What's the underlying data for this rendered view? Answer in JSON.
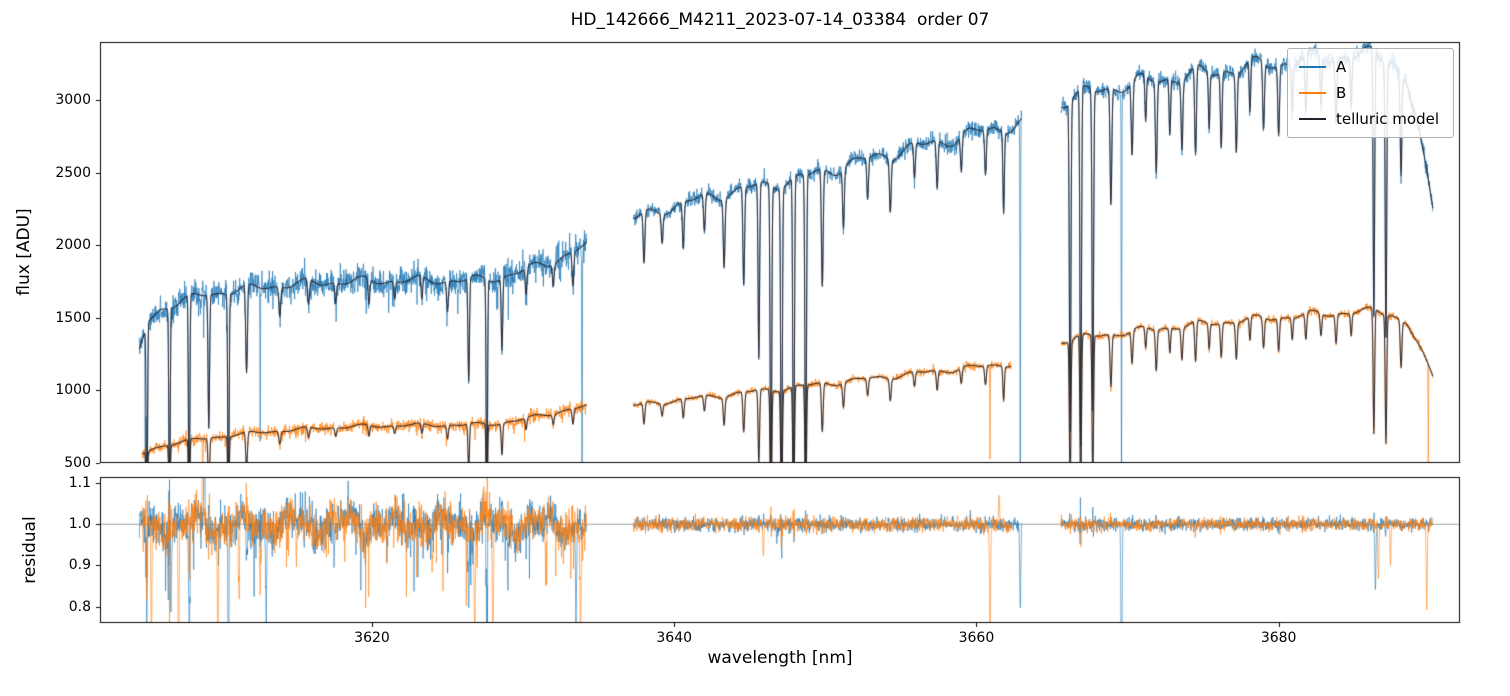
{
  "title": "HD_142666_M4211_2023-07-14_03384  order 07",
  "axes": {
    "top": {
      "ylabel": "flux [ADU]",
      "xlim": [
        3602,
        3692
      ],
      "ylim": [
        500,
        3400
      ],
      "yticks": [
        500,
        1000,
        1500,
        2000,
        2500,
        3000
      ]
    },
    "bottom": {
      "ylabel": "residual",
      "xlabel": "wavelength [nm]",
      "xlim": [
        3602,
        3692
      ],
      "ylim": [
        0.76,
        1.115
      ],
      "yticks": [
        0.8,
        0.9,
        1.0,
        1.1
      ],
      "ytick_labels": [
        "0.8",
        "0.9",
        "1.0",
        "1.1"
      ],
      "xticks": [
        3620,
        3640,
        3660,
        3680
      ],
      "hline": 1.0
    }
  },
  "legend": {
    "entries": [
      {
        "label": "A",
        "color": "#1f77b4",
        "lw": 2.5
      },
      {
        "label": "B",
        "color": "#ff7f0e",
        "lw": 2.5
      },
      {
        "label": "telluric model",
        "color": "#22222c",
        "lw": 1.4
      }
    ]
  },
  "chart_data": {
    "type": "line",
    "description": "Spectrograph order 07: flux of fibres A and B with overlaid telluric model (top panel), residuals observed/model around 1.0 (bottom panel). Three detector segments separated by gaps near 3634-3637 nm and 3663-3665.5 nm.",
    "seed": 42,
    "sample_step_nm": 0.02,
    "model_color": "#22222c",
    "flux_noise": [
      0.028,
      0.011,
      0.009
    ],
    "residual_noise": [
      0.024,
      0.0085,
      0.0075
    ],
    "telluric_lines": [
      [
        3605.1,
        0.98,
        0.06
      ],
      [
        3606.6,
        0.95,
        0.06
      ],
      [
        3607.9,
        0.99,
        0.06
      ],
      [
        3609.2,
        0.55,
        0.07
      ],
      [
        3610.5,
        0.98,
        0.06
      ],
      [
        3611.7,
        0.35,
        0.08
      ],
      [
        3613.9,
        0.12,
        0.09
      ],
      [
        3615.8,
        0.1,
        0.09
      ],
      [
        3617.6,
        0.08,
        0.08
      ],
      [
        3619.8,
        0.1,
        0.08
      ],
      [
        3621.5,
        0.07,
        0.08
      ],
      [
        3623.3,
        0.09,
        0.08
      ],
      [
        3625.0,
        0.12,
        0.08
      ],
      [
        3626.4,
        0.4,
        0.07
      ],
      [
        3627.6,
        0.97,
        0.06
      ],
      [
        3628.6,
        0.28,
        0.07
      ],
      [
        3630.2,
        0.1,
        0.08
      ],
      [
        3632.0,
        0.08,
        0.08
      ],
      [
        3633.3,
        0.12,
        0.08
      ],
      [
        3638.0,
        0.16,
        0.08
      ],
      [
        3639.2,
        0.09,
        0.08
      ],
      [
        3640.6,
        0.14,
        0.08
      ],
      [
        3642.0,
        0.11,
        0.08
      ],
      [
        3643.3,
        0.2,
        0.08
      ],
      [
        3644.6,
        0.28,
        0.08
      ],
      [
        3645.6,
        0.5,
        0.07
      ],
      [
        3646.4,
        0.96,
        0.07
      ],
      [
        3647.1,
        0.99,
        0.07
      ],
      [
        3647.9,
        0.98,
        0.07
      ],
      [
        3648.7,
        0.88,
        0.07
      ],
      [
        3649.8,
        0.32,
        0.08
      ],
      [
        3651.2,
        0.16,
        0.08
      ],
      [
        3652.8,
        0.11,
        0.08
      ],
      [
        3654.3,
        0.14,
        0.08
      ],
      [
        3655.9,
        0.09,
        0.08
      ],
      [
        3657.4,
        0.12,
        0.08
      ],
      [
        3659.0,
        0.09,
        0.08
      ],
      [
        3660.6,
        0.11,
        0.08
      ],
      [
        3661.8,
        0.2,
        0.07
      ],
      [
        3666.2,
        0.76,
        0.07
      ],
      [
        3666.9,
        0.8,
        0.07
      ],
      [
        3667.7,
        0.72,
        0.07
      ],
      [
        3668.9,
        0.26,
        0.08
      ],
      [
        3670.3,
        0.16,
        0.08
      ],
      [
        3671.2,
        0.1,
        0.07
      ],
      [
        3671.9,
        0.2,
        0.08
      ],
      [
        3672.8,
        0.12,
        0.07
      ],
      [
        3673.6,
        0.15,
        0.08
      ],
      [
        3674.5,
        0.19,
        0.08
      ],
      [
        3675.4,
        0.12,
        0.07
      ],
      [
        3676.2,
        0.16,
        0.08
      ],
      [
        3677.2,
        0.17,
        0.08
      ],
      [
        3678.1,
        0.11,
        0.07
      ],
      [
        3679.0,
        0.14,
        0.08
      ],
      [
        3680.0,
        0.15,
        0.08
      ],
      [
        3680.9,
        0.1,
        0.07
      ],
      [
        3681.8,
        0.12,
        0.08
      ],
      [
        3682.8,
        0.1,
        0.08
      ],
      [
        3683.8,
        0.13,
        0.08
      ],
      [
        3684.8,
        0.1,
        0.07
      ],
      [
        3686.3,
        0.55,
        0.07
      ],
      [
        3687.1,
        0.58,
        0.07
      ],
      [
        3688.1,
        0.22,
        0.08
      ]
    ],
    "series": [
      {
        "name": "A",
        "color": "#1f77b4",
        "segments": [
          {
            "range": [
              3604.6,
              3634.2
            ],
            "env": [
              [
                3604.6,
                1270
              ],
              [
                3605.2,
                1480
              ],
              [
                3606.0,
                1560
              ],
              [
                3607.5,
                1620
              ],
              [
                3609.0,
                1660
              ],
              [
                3611.0,
                1690
              ],
              [
                3613.0,
                1715
              ],
              [
                3616.0,
                1740
              ],
              [
                3619.0,
                1752
              ],
              [
                3622.0,
                1758
              ],
              [
                3625.0,
                1758
              ],
              [
                3627.0,
                1762
              ],
              [
                3628.5,
                1780
              ],
              [
                3630.0,
                1822
              ],
              [
                3631.5,
                1875
              ],
              [
                3633.0,
                1940
              ],
              [
                3634.2,
                1995
              ]
            ]
          },
          {
            "range": [
              3637.3,
              3663.0
            ],
            "env": [
              [
                3637.3,
                2180
              ],
              [
                3639.0,
                2240
              ],
              [
                3641.0,
                2300
              ],
              [
                3643.0,
                2350
              ],
              [
                3645.0,
                2395
              ],
              [
                3647.0,
                2430
              ],
              [
                3649.0,
                2480
              ],
              [
                3651.0,
                2540
              ],
              [
                3653.0,
                2600
              ],
              [
                3655.0,
                2650
              ],
              [
                3657.0,
                2700
              ],
              [
                3659.0,
                2750
              ],
              [
                3661.0,
                2800
              ],
              [
                3662.5,
                2830
              ],
              [
                3663.0,
                2840
              ]
            ]
          },
          {
            "range": [
              3665.6,
              3690.2
            ],
            "env": [
              [
                3665.6,
                2990
              ],
              [
                3667.0,
                3040
              ],
              [
                3669.0,
                3090
              ],
              [
                3671.0,
                3125
              ],
              [
                3673.0,
                3155
              ],
              [
                3675.0,
                3185
              ],
              [
                3677.0,
                3215
              ],
              [
                3679.0,
                3245
              ],
              [
                3681.0,
                3270
              ],
              [
                3683.0,
                3295
              ],
              [
                3685.0,
                3310
              ],
              [
                3686.5,
                3305
              ],
              [
                3687.5,
                3290
              ],
              [
                3688.5,
                3120
              ],
              [
                3689.3,
                2760
              ],
              [
                3690.2,
                2240
              ]
            ]
          }
        ],
        "dips": [
          [
            3605.0,
            0.99,
            0.025
          ],
          [
            3612.6,
            0.6,
            0.02
          ],
          [
            3633.9,
            0.95,
            0.025
          ],
          [
            3662.9,
            0.99,
            0.025
          ],
          [
            3669.6,
            0.99,
            0.025
          ]
        ],
        "residual_spikes": [
          [
            3605.1,
            -0.28
          ],
          [
            3606.7,
            -0.22
          ],
          [
            3607.9,
            -0.35
          ],
          [
            3608.9,
            0.18
          ],
          [
            3610.5,
            -0.3
          ],
          [
            3611.7,
            -0.15
          ],
          [
            3613.0,
            -0.22
          ],
          [
            3617.5,
            -0.1
          ],
          [
            3621.0,
            -0.08
          ],
          [
            3626.4,
            -0.18
          ],
          [
            3627.6,
            -0.32
          ],
          [
            3629.0,
            -0.12
          ],
          [
            3633.5,
            -0.25
          ],
          [
            3646.8,
            -0.05
          ],
          [
            3662.9,
            -0.2
          ],
          [
            3669.6,
            -0.45
          ],
          [
            3686.4,
            -0.16
          ]
        ]
      },
      {
        "name": "B",
        "color": "#ff7f0e",
        "segments": [
          {
            "range": [
              3604.8,
              3634.2
            ],
            "env": [
              [
                3604.8,
                560
              ],
              [
                3605.5,
                600
              ],
              [
                3607.0,
                640
              ],
              [
                3609.0,
                670
              ],
              [
                3611.0,
                695
              ],
              [
                3613.0,
                715
              ],
              [
                3616.0,
                738
              ],
              [
                3619.0,
                752
              ],
              [
                3622.0,
                760
              ],
              [
                3625.0,
                762
              ],
              [
                3627.0,
                765
              ],
              [
                3628.5,
                775
              ],
              [
                3630.0,
                800
              ],
              [
                3631.5,
                835
              ],
              [
                3633.0,
                868
              ],
              [
                3634.2,
                890
              ]
            ]
          },
          {
            "range": [
              3637.3,
              3662.3
            ],
            "env": [
              [
                3637.3,
                895
              ],
              [
                3640.0,
                930
              ],
              [
                3643.0,
                965
              ],
              [
                3646.0,
                1000
              ],
              [
                3649.0,
                1035
              ],
              [
                3652.0,
                1070
              ],
              [
                3655.0,
                1105
              ],
              [
                3658.0,
                1140
              ],
              [
                3660.0,
                1160
              ],
              [
                3662.3,
                1185
              ]
            ]
          },
          {
            "range": [
              3665.6,
              3690.2
            ],
            "env": [
              [
                3665.6,
                1345
              ],
              [
                3667.0,
                1365
              ],
              [
                3669.0,
                1390
              ],
              [
                3671.0,
                1415
              ],
              [
                3673.0,
                1438
              ],
              [
                3675.0,
                1458
              ],
              [
                3677.0,
                1478
              ],
              [
                3679.0,
                1496
              ],
              [
                3681.0,
                1512
              ],
              [
                3683.0,
                1528
              ],
              [
                3685.0,
                1540
              ],
              [
                3686.5,
                1545
              ],
              [
                3687.5,
                1530
              ],
              [
                3688.5,
                1460
              ],
              [
                3689.3,
                1300
              ],
              [
                3690.2,
                1090
              ]
            ]
          }
        ],
        "dips": [
          [
            3608.8,
            0.9,
            0.02
          ],
          [
            3660.9,
            0.55,
            0.02
          ],
          [
            3689.9,
            0.6,
            0.02
          ]
        ],
        "residual_spikes": [
          [
            3605.4,
            -0.3
          ],
          [
            3607.2,
            -0.35
          ],
          [
            3608.8,
            0.2
          ],
          [
            3609.8,
            -0.25
          ],
          [
            3611.2,
            -0.2
          ],
          [
            3612.6,
            -0.15
          ],
          [
            3615.0,
            -0.1
          ],
          [
            3624.0,
            -0.1
          ],
          [
            3626.8,
            -0.28
          ],
          [
            3628.0,
            -0.35
          ],
          [
            3631.5,
            -0.12
          ],
          [
            3633.8,
            -0.3
          ],
          [
            3645.9,
            -0.08
          ],
          [
            3660.9,
            -0.3
          ],
          [
            3661.5,
            0.08
          ],
          [
            3686.6,
            -0.14
          ],
          [
            3687.4,
            -0.1
          ],
          [
            3689.8,
            -0.2
          ]
        ]
      }
    ]
  }
}
